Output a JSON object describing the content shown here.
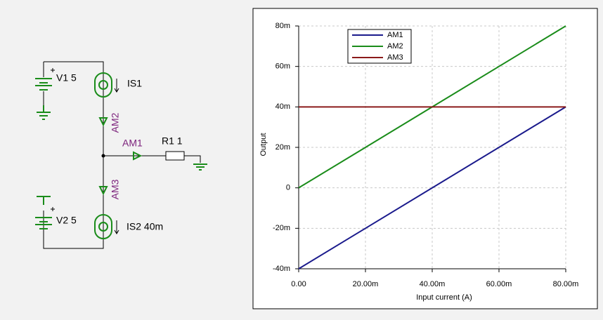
{
  "schematic": {
    "labels": {
      "v1": "V1 5",
      "is1": "IS1",
      "am2": "AM2",
      "am1": "AM1",
      "r1": "R1 1",
      "am3": "AM3",
      "v2": "V2 5",
      "is2": "IS2 40m"
    }
  },
  "chart_data": {
    "type": "line",
    "x_label": "Input current (A)",
    "y_label": "Output",
    "x": [
      0,
      0.08
    ],
    "series": [
      {
        "name": "AM1",
        "color": "#1a1a8c",
        "values": [
          -0.04,
          0.04
        ]
      },
      {
        "name": "AM2",
        "color": "#1a8c1a",
        "values": [
          0,
          0.08
        ]
      },
      {
        "name": "AM3",
        "color": "#8b1a1a",
        "values": [
          0.04,
          0.04
        ]
      }
    ],
    "xlim": [
      0,
      0.08
    ],
    "xticks": [
      {
        "value": 0,
        "label": "0.00"
      },
      {
        "value": 0.02,
        "label": "20.00m"
      },
      {
        "value": 0.04,
        "label": "40.00m"
      },
      {
        "value": 0.06,
        "label": "60.00m"
      },
      {
        "value": 0.08,
        "label": "80.00m"
      }
    ],
    "ylim": [
      -0.04,
      0.08
    ],
    "yticks": [
      {
        "value": -0.04,
        "label": "-40m"
      },
      {
        "value": -0.02,
        "label": "-20m"
      },
      {
        "value": 0,
        "label": "0"
      },
      {
        "value": 0.02,
        "label": "20m"
      },
      {
        "value": 0.04,
        "label": "40m"
      },
      {
        "value": 0.06,
        "label": "60m"
      },
      {
        "value": 0.08,
        "label": "80m"
      }
    ],
    "grid": true,
    "legend": "top-left"
  }
}
